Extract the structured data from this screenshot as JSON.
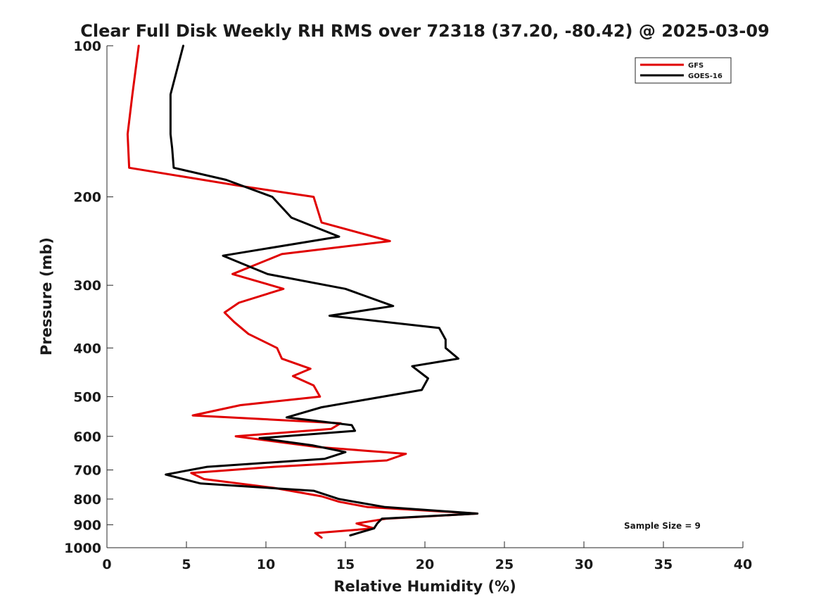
{
  "chart_data": {
    "type": "line",
    "title": "Clear Full Disk Weekly RH RMS over 72318 (37.20, -80.42) @ 2025-03-09",
    "xlabel": "Relative Humidity (%)",
    "ylabel": "Pressure (mb)",
    "xlim": [
      0,
      40
    ],
    "ylim": [
      1000,
      100
    ],
    "y_scale": "log",
    "x_ticks": [
      0,
      5,
      10,
      15,
      20,
      25,
      30,
      35,
      40
    ],
    "y_ticks": [
      100,
      200,
      300,
      400,
      500,
      600,
      700,
      800,
      900,
      1000
    ],
    "grid": false,
    "legend_position": "top-right",
    "annotation": "Sample Size = 9",
    "series": [
      {
        "name": "GFS",
        "color": "#e00000",
        "points": [
          [
            2.0,
            100
          ],
          [
            1.6,
            125
          ],
          [
            1.3,
            150
          ],
          [
            1.4,
            175
          ],
          [
            8.3,
            190
          ],
          [
            13.0,
            200
          ],
          [
            13.5,
            225
          ],
          [
            17.8,
            245
          ],
          [
            11.0,
            260
          ],
          [
            7.9,
            285
          ],
          [
            11.1,
            305
          ],
          [
            8.3,
            325
          ],
          [
            7.4,
            340
          ],
          [
            8.0,
            355
          ],
          [
            8.9,
            375
          ],
          [
            10.7,
            400
          ],
          [
            11.0,
            420
          ],
          [
            12.8,
            440
          ],
          [
            11.7,
            455
          ],
          [
            13.0,
            475
          ],
          [
            13.4,
            500
          ],
          [
            8.4,
            520
          ],
          [
            5.4,
            545
          ],
          [
            14.7,
            565
          ],
          [
            14.1,
            580
          ],
          [
            8.1,
            600
          ],
          [
            13.2,
            630
          ],
          [
            18.8,
            650
          ],
          [
            17.6,
            670
          ],
          [
            10.5,
            690
          ],
          [
            5.3,
            710
          ],
          [
            6.1,
            730
          ],
          [
            10.5,
            760
          ],
          [
            13.5,
            790
          ],
          [
            14.6,
            810
          ],
          [
            16.4,
            830
          ],
          [
            23.3,
            855
          ],
          [
            17.6,
            875
          ],
          [
            15.7,
            895
          ],
          [
            16.8,
            915
          ],
          [
            13.1,
            935
          ],
          [
            13.5,
            955
          ]
        ]
      },
      {
        "name": "GOES-16",
        "color": "#000000",
        "points": [
          [
            4.8,
            100
          ],
          [
            4.0,
            125
          ],
          [
            4.0,
            150
          ],
          [
            4.1,
            160
          ],
          [
            4.2,
            175
          ],
          [
            7.5,
            185
          ],
          [
            10.4,
            200
          ],
          [
            11.6,
            220
          ],
          [
            14.6,
            240
          ],
          [
            7.3,
            262
          ],
          [
            10.1,
            285
          ],
          [
            15.0,
            305
          ],
          [
            18.0,
            330
          ],
          [
            14.0,
            345
          ],
          [
            20.9,
            365
          ],
          [
            21.3,
            385
          ],
          [
            21.3,
            400
          ],
          [
            22.1,
            420
          ],
          [
            19.2,
            435
          ],
          [
            20.2,
            460
          ],
          [
            19.8,
            485
          ],
          [
            13.5,
            525
          ],
          [
            11.3,
            550
          ],
          [
            15.4,
            570
          ],
          [
            15.6,
            585
          ],
          [
            9.6,
            605
          ],
          [
            12.9,
            625
          ],
          [
            15.0,
            645
          ],
          [
            13.7,
            665
          ],
          [
            6.3,
            690
          ],
          [
            3.7,
            715
          ],
          [
            5.9,
            745
          ],
          [
            13.0,
            770
          ],
          [
            14.6,
            800
          ],
          [
            17.5,
            830
          ],
          [
            23.3,
            855
          ],
          [
            17.3,
            875
          ],
          [
            17.0,
            895
          ],
          [
            16.8,
            915
          ],
          [
            15.3,
            945
          ]
        ]
      }
    ]
  }
}
